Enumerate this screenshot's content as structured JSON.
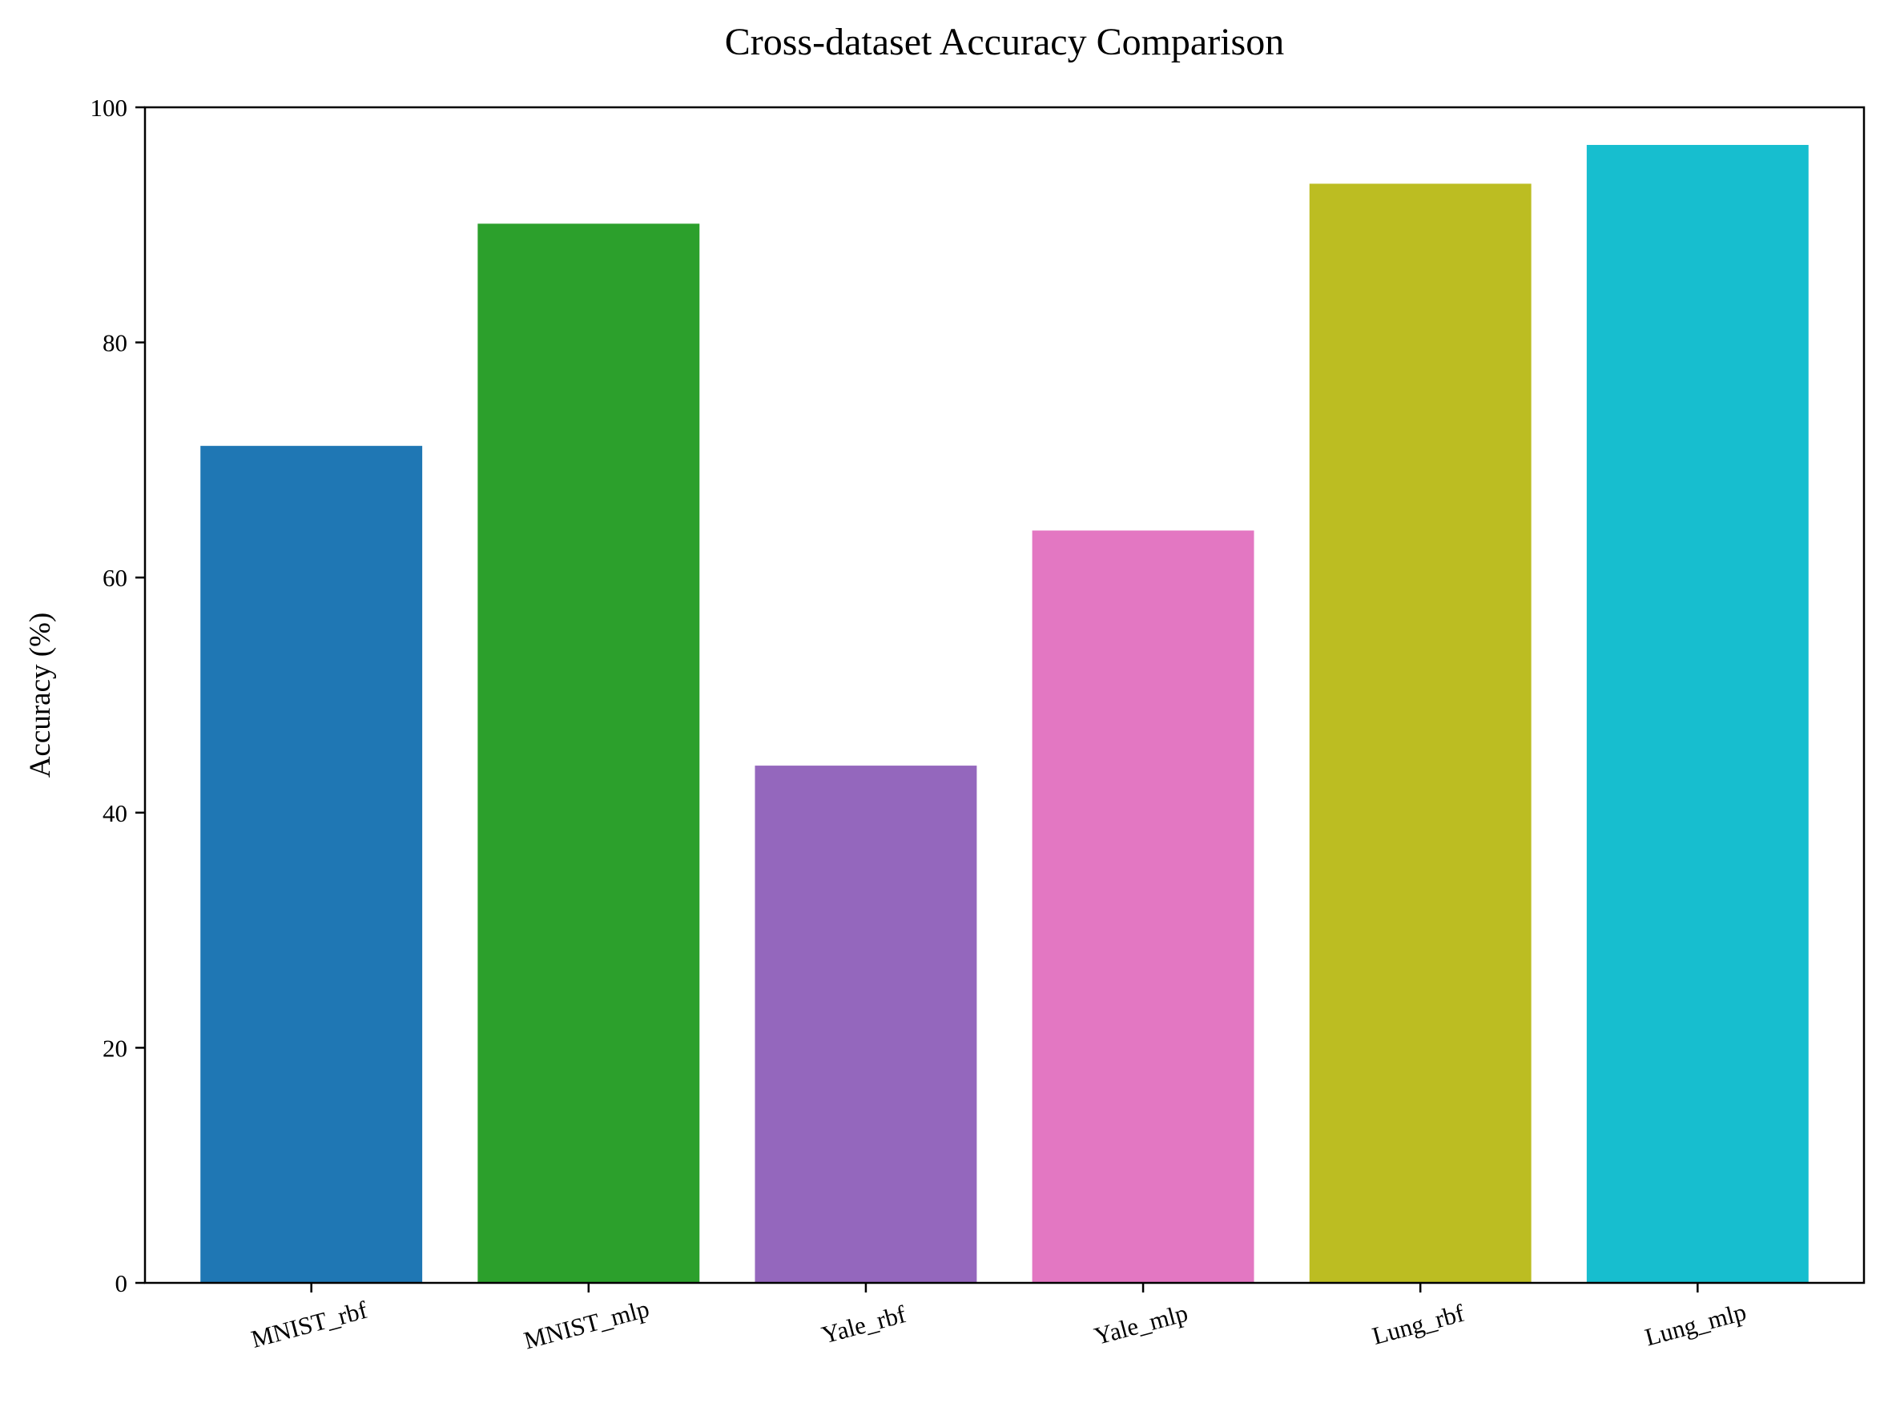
{
  "chart_data": {
    "type": "bar",
    "title": "Cross-dataset Accuracy Comparison",
    "xlabel": "",
    "ylabel": "Accuracy (%)",
    "categories": [
      "MNIST_rbf",
      "MNIST_mlp",
      "Yale_rbf",
      "Yale_mlp",
      "Lung_rbf",
      "Lung_mlp"
    ],
    "values": [
      71.2,
      90.1,
      44.0,
      64.0,
      93.5,
      96.8
    ],
    "colors": [
      "#1f77b4",
      "#2ca02c",
      "#9467bd",
      "#e377c2",
      "#bcbd22",
      "#17becf"
    ],
    "ylim": [
      0,
      100
    ],
    "yticks": [
      0,
      20,
      40,
      60,
      80,
      100
    ],
    "grid": false,
    "legend": "none"
  }
}
